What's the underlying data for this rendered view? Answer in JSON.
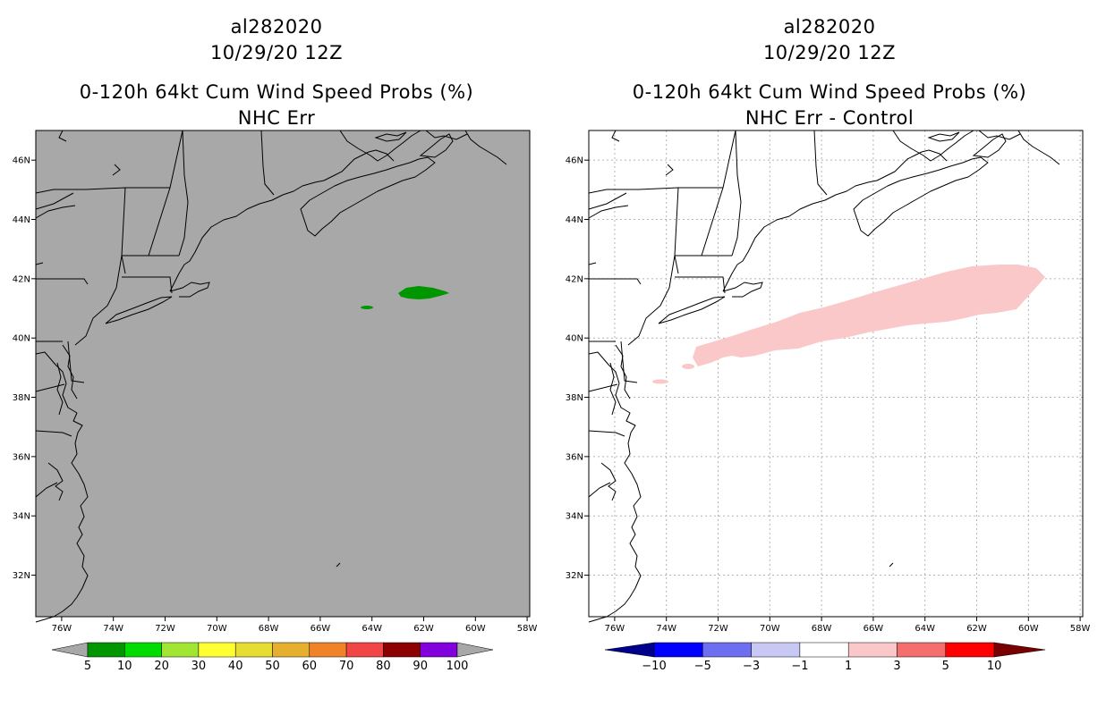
{
  "panels": [
    {
      "id": "left",
      "storm": "al282020",
      "datetime": "10/29/20 12Z",
      "product": "0-120h 64kt Cum Wind Speed Probs (%)",
      "subtitle": "NHC Err",
      "background": "#a8a8a8",
      "gridlines": false,
      "legend": {
        "colors": [
          "#009600",
          "#00dc00",
          "#a0e632",
          "#ffff32",
          "#e6dc32",
          "#e6af2d",
          "#f08228",
          "#f04646",
          "#8c0000",
          "#8200dc"
        ],
        "end_color": "#a8a8a8",
        "labels": [
          "5",
          "10",
          "20",
          "30",
          "40",
          "50",
          "60",
          "70",
          "80",
          "90",
          "100"
        ]
      }
    },
    {
      "id": "right",
      "storm": "al282020",
      "datetime": "10/29/20 12Z",
      "product": "0-120h 64kt Cum Wind Speed Probs (%)",
      "subtitle": "NHC Err - Control",
      "background": "#ffffff",
      "gridlines": true,
      "legend": {
        "colors": [
          "#0000ff",
          "#6e6ef0",
          "#c8c8f5",
          "#ffffff",
          "#fac8c8",
          "#f46e6e",
          "#ff0000"
        ],
        "low_color": "#00008c",
        "high_color": "#780000",
        "labels": [
          "-10",
          "-5",
          "-3",
          "-1",
          "1",
          "3",
          "5",
          "10"
        ]
      }
    }
  ],
  "axes": {
    "lon_labels": [
      "76W",
      "74W",
      "72W",
      "70W",
      "68W",
      "66W",
      "64W",
      "62W",
      "60W",
      "58W"
    ],
    "lat_labels": [
      "46N",
      "44N",
      "42N",
      "40N",
      "38N",
      "36N",
      "34N",
      "32N"
    ],
    "lon_range": [
      -77,
      -57.9
    ],
    "lat_range": [
      30.6,
      47
    ]
  },
  "chart_data": {
    "type": "heatmap",
    "panels": [
      {
        "name": "NHC Err",
        "contours": [
          {
            "category": "5-10 %",
            "color": "#009600",
            "centroid_lon": -61.6,
            "centroid_lat": 41.5
          },
          {
            "category": "5-10 %",
            "color": "#009600",
            "centroid_lon": -64.6,
            "centroid_lat": 41.0
          }
        ]
      },
      {
        "name": "NHC Err - Control",
        "contours": [
          {
            "category": "1-3 %",
            "color": "#fac8c8",
            "from_lon": -73.8,
            "to_lon": -58.7,
            "from_lat": 39.3,
            "to_lat": 42.0
          }
        ]
      }
    ]
  }
}
